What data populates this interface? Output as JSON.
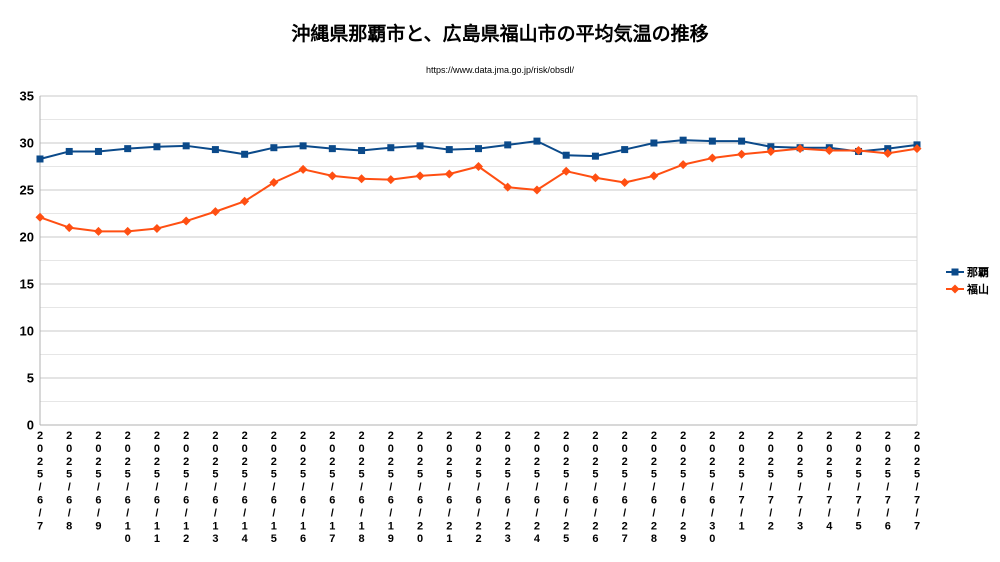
{
  "chart_data": {
    "type": "line",
    "title": "沖縄県那覇市と、広島県福山市の平均気温の推移",
    "subtitle": "https://www.data.jma.go.jp/risk/obsdl/",
    "xlabel": "",
    "ylabel": "",
    "ylim": [
      0,
      35
    ],
    "y_major_ticks": [
      0,
      5,
      10,
      15,
      20,
      25,
      30,
      35
    ],
    "grid": true,
    "legend_position": "right",
    "categories": [
      "2025/6/7",
      "2025/6/8",
      "2025/6/9",
      "2025/6/10",
      "2025/6/11",
      "2025/6/12",
      "2025/6/13",
      "2025/6/14",
      "2025/6/15",
      "2025/6/16",
      "2025/6/17",
      "2025/6/18",
      "2025/6/19",
      "2025/6/20",
      "2025/6/21",
      "2025/6/22",
      "2025/6/23",
      "2025/6/24",
      "2025/6/25",
      "2025/6/26",
      "2025/6/27",
      "2025/6/28",
      "2025/6/29",
      "2025/6/30",
      "2025/7/1",
      "2025/7/2",
      "2025/7/3",
      "2025/7/4",
      "2025/7/5",
      "2025/7/6",
      "2025/7/7"
    ],
    "series": [
      {
        "name": "那覇",
        "color": "#0b4a8a",
        "marker": "square",
        "values": [
          28.3,
          29.1,
          29.1,
          29.4,
          29.6,
          29.7,
          29.3,
          28.8,
          29.5,
          29.7,
          29.4,
          29.2,
          29.5,
          29.7,
          29.3,
          29.4,
          29.8,
          30.2,
          28.7,
          28.6,
          29.3,
          30.0,
          30.3,
          30.2,
          30.2,
          29.6,
          29.5,
          29.5,
          29.1,
          29.4,
          29.8
        ]
      },
      {
        "name": "福山",
        "color": "#ff4f12",
        "marker": "diamond",
        "values": [
          22.1,
          21.0,
          20.6,
          20.6,
          20.9,
          21.7,
          22.7,
          23.8,
          25.8,
          27.2,
          26.5,
          26.2,
          26.1,
          26.5,
          26.7,
          27.5,
          25.3,
          25.0,
          27.0,
          26.3,
          25.8,
          26.5,
          27.7,
          28.4,
          28.8,
          29.1,
          29.4,
          29.2,
          29.2,
          28.9,
          29.4
        ]
      }
    ]
  }
}
